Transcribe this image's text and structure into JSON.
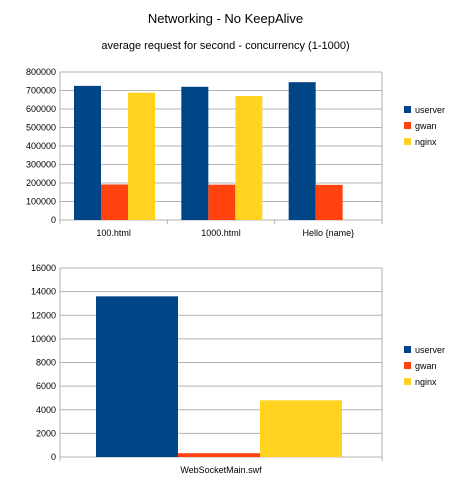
{
  "title": "Networking - No KeepAlive",
  "subtitle": "average request for second - concurrency (1-1000)",
  "chart_data": [
    {
      "type": "bar",
      "categories": [
        "100.html",
        "1000.html",
        "Hello {name}"
      ],
      "series": [
        {
          "name": "userver",
          "color": "#004586",
          "values": [
            725000,
            720000,
            745000
          ]
        },
        {
          "name": "gwan",
          "color": "#ff420e",
          "values": [
            192000,
            191000,
            190000
          ]
        },
        {
          "name": "nginx",
          "color": "#ffd320",
          "values": [
            688000,
            670000,
            null
          ]
        }
      ],
      "ylim": [
        0,
        800000
      ],
      "yticks": [
        0,
        100000,
        200000,
        300000,
        400000,
        500000,
        600000,
        700000,
        800000
      ],
      "grid": true,
      "legend": "right"
    },
    {
      "type": "bar",
      "categories": [
        "WebSocketMain.swf"
      ],
      "series": [
        {
          "name": "userver",
          "color": "#004586",
          "values": [
            13600
          ]
        },
        {
          "name": "gwan",
          "color": "#ff420e",
          "values": [
            320
          ]
        },
        {
          "name": "nginx",
          "color": "#ffd320",
          "values": [
            4800
          ]
        }
      ],
      "ylim": [
        0,
        16000
      ],
      "yticks": [
        0,
        2000,
        4000,
        6000,
        8000,
        10000,
        12000,
        14000,
        16000
      ],
      "grid": true,
      "legend": "right"
    }
  ]
}
